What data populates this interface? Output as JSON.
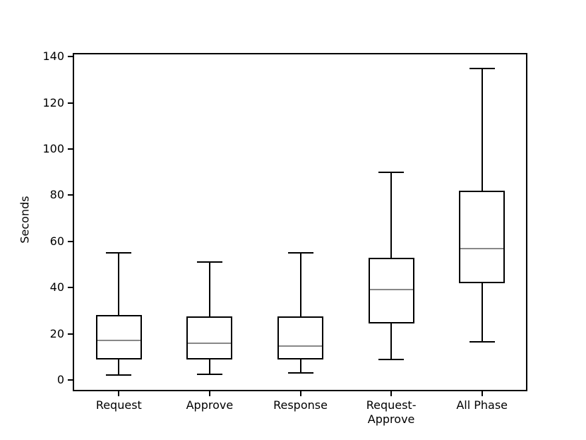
{
  "chart_data": {
    "type": "box",
    "title": "",
    "xlabel": "",
    "ylabel": "Seconds",
    "ylim": [
      -4.6,
      141.0
    ],
    "yticks": [
      0,
      20,
      40,
      60,
      80,
      100,
      120,
      140
    ],
    "grid": false,
    "legend": "none",
    "box_edge_color": "#000000",
    "median_color": "#888888",
    "background_color": "#ffffff",
    "categories": [
      "Request",
      "Approve",
      "Response",
      "Request-\nApprove",
      "All Phase"
    ],
    "series": [
      {
        "name": "Request",
        "whisker_low": 2,
        "q1": 9,
        "median": 17,
        "q3": 28,
        "whisker_high": 55
      },
      {
        "name": "Approve",
        "whisker_low": 2.5,
        "q1": 9,
        "median": 16,
        "q3": 27.5,
        "whisker_high": 51
      },
      {
        "name": "Response",
        "whisker_low": 3,
        "q1": 9,
        "median": 14.7,
        "q3": 27.5,
        "whisker_high": 55
      },
      {
        "name": "Request-Approve",
        "whisker_low": 9,
        "q1": 24.5,
        "median": 39,
        "q3": 53,
        "whisker_high": 90
      },
      {
        "name": "All Phase",
        "whisker_low": 16.5,
        "q1": 42,
        "median": 57,
        "q3": 82,
        "whisker_high": 135
      }
    ]
  }
}
